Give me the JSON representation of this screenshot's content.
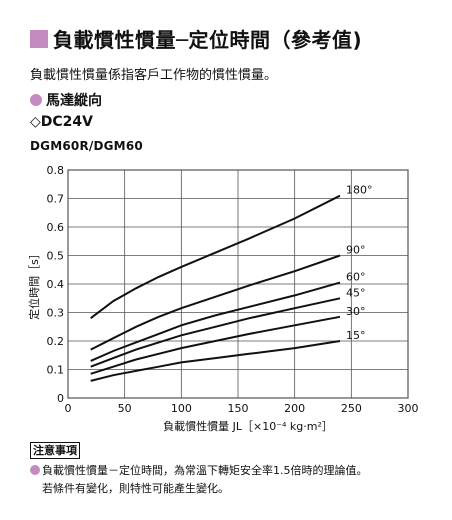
{
  "heading": {
    "title": "負載慣性慣量─定位時間（參考值)",
    "description": "負載慣性慣量係指客戶工作物的慣性慣量。",
    "section": "馬達縱向",
    "voltage": "◇DC24V",
    "models": "DGM60R/DGM60"
  },
  "colors": {
    "accent": "#c48bbf",
    "grid": "#555555",
    "line": "#111111"
  },
  "chart_data": {
    "type": "line",
    "xlabel": "負載慣性慣量 JL［×10⁻⁴ kg·m²］",
    "ylabel": "定位時間［s］",
    "xlim": [
      0,
      300
    ],
    "ylim": [
      0,
      0.8
    ],
    "xticks": [
      "0",
      "50",
      "100",
      "150",
      "200",
      "250",
      "300"
    ],
    "yticks": [
      "0",
      "0.1",
      "0.2",
      "0.3",
      "0.4",
      "0.5",
      "0.6",
      "0.7",
      "0.8"
    ],
    "grid": true,
    "series": [
      {
        "name": "180°",
        "x": [
          20,
          40,
          60,
          80,
          100,
          130,
          160,
          200,
          240
        ],
        "y": [
          0.28,
          0.34,
          0.385,
          0.425,
          0.46,
          0.51,
          0.56,
          0.63,
          0.71
        ]
      },
      {
        "name": "90°",
        "x": [
          20,
          40,
          60,
          80,
          100,
          130,
          160,
          200,
          240
        ],
        "y": [
          0.17,
          0.21,
          0.25,
          0.285,
          0.315,
          0.355,
          0.395,
          0.445,
          0.5
        ]
      },
      {
        "name": "60°",
        "x": [
          20,
          40,
          60,
          80,
          100,
          130,
          160,
          200,
          240
        ],
        "y": [
          0.13,
          0.165,
          0.195,
          0.225,
          0.255,
          0.29,
          0.32,
          0.36,
          0.405
        ]
      },
      {
        "name": "45°",
        "x": [
          20,
          40,
          60,
          80,
          100,
          130,
          160,
          200,
          240
        ],
        "y": [
          0.11,
          0.14,
          0.17,
          0.195,
          0.22,
          0.25,
          0.28,
          0.315,
          0.35
        ]
      },
      {
        "name": "30°",
        "x": [
          20,
          40,
          60,
          80,
          100,
          130,
          160,
          200,
          240
        ],
        "y": [
          0.085,
          0.11,
          0.135,
          0.155,
          0.175,
          0.2,
          0.225,
          0.255,
          0.285
        ]
      },
      {
        "name": "15°",
        "x": [
          20,
          40,
          60,
          80,
          100,
          130,
          160,
          200,
          240
        ],
        "y": [
          0.06,
          0.08,
          0.095,
          0.11,
          0.125,
          0.14,
          0.155,
          0.175,
          0.2
        ]
      }
    ]
  },
  "notes": {
    "label": "注意事項",
    "line1": "負載慣性慣量－定位時間，為常溫下轉矩安全率1.5倍時的理論值。",
    "line2": "若條件有變化，則特性可能產生變化。"
  }
}
